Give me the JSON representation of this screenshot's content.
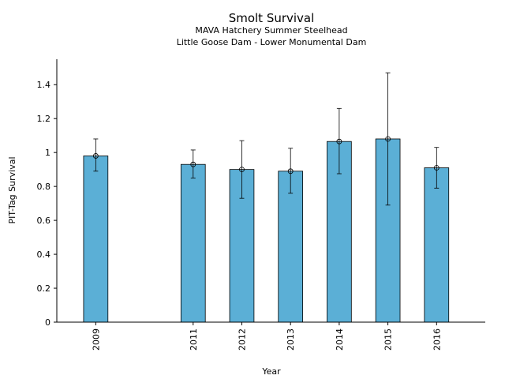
{
  "chart_data": {
    "type": "bar",
    "title": "Smolt Survival",
    "subtitle": [
      "MAVA Hatchery Summer Steelhead",
      "Little Goose Dam - Lower Monumental Dam"
    ],
    "xlabel": "Year",
    "ylabel": "PIT-Tag Survival",
    "x": [
      2009,
      2011,
      2012,
      2013,
      2014,
      2015,
      2016
    ],
    "values": [
      0.98,
      0.93,
      0.9,
      0.89,
      1.065,
      1.08,
      0.91
    ],
    "error_low": [
      0.89,
      0.85,
      0.73,
      0.76,
      0.875,
      0.69,
      0.79
    ],
    "error_high": [
      1.08,
      1.015,
      1.07,
      1.025,
      1.26,
      1.47,
      1.03
    ],
    "ylim": [
      0,
      1.55
    ],
    "xlim": [
      2008.2,
      2017
    ],
    "yticks": [
      0,
      0.2,
      0.4,
      0.6,
      0.8,
      1,
      1.2,
      1.4
    ],
    "ytick_labels": [
      "0",
      "0.2",
      "0.4",
      "0.6",
      "0.8",
      "1",
      "1.2",
      "1.4"
    ],
    "grid": false,
    "bar_color": "#5bafd6"
  }
}
